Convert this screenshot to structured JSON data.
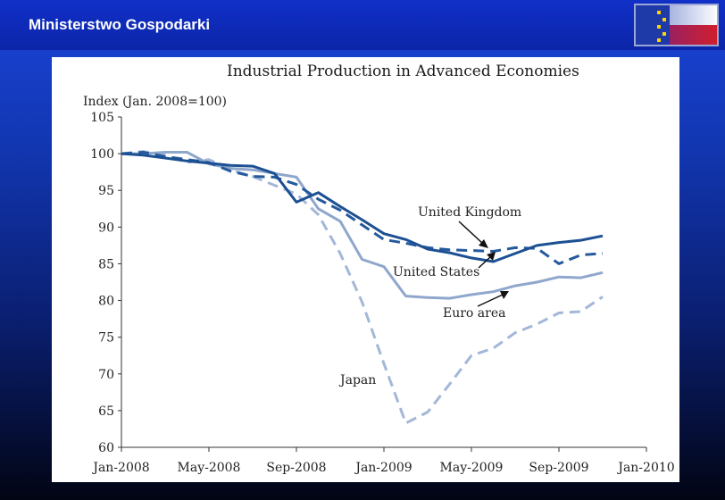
{
  "header": {
    "title": "Ministerstwo Gospodarki"
  },
  "colors": {
    "uk": "#24599c",
    "us": "#1d5093",
    "euro": "#8fa7cc",
    "japan": "#a3b7d8"
  },
  "chart_data": {
    "type": "line",
    "title": "Industrial Production in Advanced Economies",
    "ylabel": "Index (Jan. 2008=100)",
    "xlabel": "",
    "ylim": [
      60,
      105
    ],
    "yticks": [
      60,
      65,
      70,
      75,
      80,
      85,
      90,
      95,
      100,
      105
    ],
    "xlim": [
      0,
      24
    ],
    "xticks": [
      {
        "pos": 0,
        "label": "Jan-2008"
      },
      {
        "pos": 4,
        "label": "May-2008"
      },
      {
        "pos": 8,
        "label": "Sep-2008"
      },
      {
        "pos": 12,
        "label": "Jan-2009"
      },
      {
        "pos": 16,
        "label": "May-2009"
      },
      {
        "pos": 20,
        "label": "Sep-2009"
      },
      {
        "pos": 24,
        "label": "Jan-2010"
      }
    ],
    "x": [
      0,
      1,
      2,
      3,
      4,
      5,
      6,
      7,
      8,
      9,
      10,
      11,
      12,
      13,
      14,
      15,
      16,
      17,
      18,
      19,
      20,
      21,
      22
    ],
    "series": [
      {
        "name": "United Kingdom",
        "style": "dashed",
        "color_key": "uk",
        "values": [
          100.0,
          100.2,
          99.6,
          99.2,
          98.8,
          97.6,
          96.9,
          96.8,
          95.8,
          93.8,
          92.3,
          90.3,
          88.3,
          87.8,
          87.2,
          86.9,
          86.8,
          86.7,
          87.2,
          87.1,
          85.0,
          86.2,
          86.4
        ]
      },
      {
        "name": "United States",
        "style": "solid",
        "color_key": "us",
        "values": [
          100.0,
          99.8,
          99.4,
          99.0,
          98.7,
          98.4,
          98.3,
          97.3,
          93.4,
          94.7,
          92.8,
          91.0,
          89.1,
          88.3,
          87.0,
          86.5,
          85.8,
          85.3,
          86.4,
          87.5,
          87.9,
          88.2,
          88.8
        ]
      },
      {
        "name": "Euro area",
        "style": "solid",
        "color_key": "euro",
        "values": [
          100.0,
          100.0,
          100.2,
          100.2,
          98.6,
          98.0,
          97.8,
          97.3,
          96.8,
          92.5,
          90.8,
          85.6,
          84.6,
          80.6,
          80.4,
          80.3,
          80.8,
          81.2,
          82.0,
          82.5,
          83.2,
          83.1,
          83.8
        ]
      },
      {
        "name": "Japan",
        "style": "dashed",
        "color_key": "japan",
        "values": [
          100.0,
          100.3,
          99.8,
          98.8,
          99.2,
          97.8,
          96.9,
          95.7,
          94.5,
          91.7,
          86.4,
          79.8,
          71.4,
          63.3,
          64.8,
          68.6,
          72.5,
          73.5,
          75.6,
          76.8,
          78.3,
          78.5,
          80.5
        ]
      }
    ],
    "annotations": [
      {
        "label": "United Kingdom",
        "series": "United Kingdom"
      },
      {
        "label": "United States",
        "series": "United States"
      },
      {
        "label": "Euro area",
        "series": "Euro area"
      },
      {
        "label": "Japan",
        "series": "Japan"
      }
    ]
  }
}
